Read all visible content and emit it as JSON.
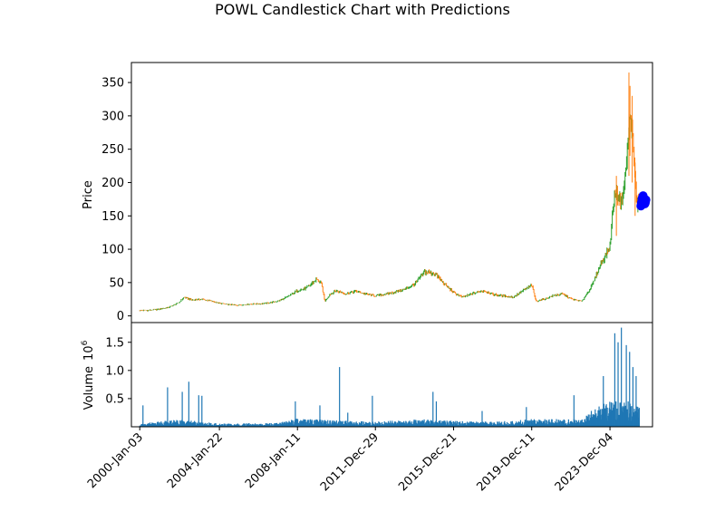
{
  "chart_data": {
    "type": "candlestick",
    "title": "POWL Candlestick Chart with Predictions",
    "price_panel": {
      "ylabel": "Price",
      "ylim": [
        -10,
        380
      ],
      "yticks": [
        0,
        50,
        100,
        150,
        200,
        250,
        300,
        350
      ],
      "ytick_labels": [
        "0",
        "50",
        "100",
        "150",
        "200",
        "250",
        "300",
        "350"
      ],
      "colors": {
        "up": "#2ca02c",
        "down": "#ff7f0e"
      },
      "series": [
        {
          "name": "close",
          "points": [
            [
              "2000-01-03",
              8
            ],
            [
              "2000-07-01",
              8.5
            ],
            [
              "2001-01-01",
              10
            ],
            [
              "2001-07-01",
              13
            ],
            [
              "2002-01-01",
              20
            ],
            [
              "2002-04-01",
              28
            ],
            [
              "2002-09-01",
              24
            ],
            [
              "2003-03-01",
              25
            ],
            [
              "2003-09-01",
              22
            ],
            [
              "2004-01-22",
              19
            ],
            [
              "2004-07-01",
              17
            ],
            [
              "2005-01-01",
              16
            ],
            [
              "2005-07-01",
              17.5
            ],
            [
              "2006-01-01",
              18
            ],
            [
              "2006-07-01",
              19
            ],
            [
              "2007-01-01",
              22
            ],
            [
              "2007-07-01",
              28
            ],
            [
              "2008-01-11",
              38
            ],
            [
              "2008-07-01",
              42
            ],
            [
              "2009-01-01",
              55
            ],
            [
              "2009-04-01",
              48
            ],
            [
              "2009-06-01",
              22
            ],
            [
              "2009-09-01",
              32
            ],
            [
              "2010-01-01",
              38
            ],
            [
              "2010-07-01",
              33
            ],
            [
              "2011-01-01",
              37
            ],
            [
              "2011-07-01",
              33
            ],
            [
              "2011-12-29",
              30
            ],
            [
              "2012-06-01",
              32
            ],
            [
              "2013-01-01",
              36
            ],
            [
              "2013-07-01",
              40
            ],
            [
              "2014-01-01",
              48
            ],
            [
              "2014-07-01",
              66
            ],
            [
              "2015-01-01",
              64
            ],
            [
              "2015-07-01",
              48
            ],
            [
              "2015-12-21",
              35
            ],
            [
              "2016-06-01",
              28
            ],
            [
              "2017-01-01",
              34
            ],
            [
              "2017-07-01",
              38
            ],
            [
              "2018-01-01",
              32
            ],
            [
              "2018-07-01",
              30
            ],
            [
              "2019-01-01",
              28
            ],
            [
              "2019-06-01",
              36
            ],
            [
              "2019-12-11",
              46
            ],
            [
              "2020-03-01",
              22
            ],
            [
              "2020-09-01",
              26
            ],
            [
              "2021-01-01",
              30
            ],
            [
              "2021-07-01",
              33
            ],
            [
              "2022-01-01",
              25
            ],
            [
              "2022-07-01",
              22
            ],
            [
              "2023-01-01",
              45
            ],
            [
              "2023-06-01",
              75
            ],
            [
              "2023-09-01",
              90
            ],
            [
              "2023-12-04",
              105
            ],
            [
              "2024-01-15",
              150
            ],
            [
              "2024-03-01",
              185
            ],
            [
              "2024-05-01",
              180
            ],
            [
              "2024-07-01",
              170
            ],
            [
              "2024-09-01",
              200
            ],
            [
              "2024-11-01",
              260
            ],
            [
              "2024-12-15",
              300
            ],
            [
              "2025-01-15",
              280
            ],
            [
              "2025-03-01",
              220
            ],
            [
              "2025-04-15",
              165
            ],
            [
              "2025-05-15",
              175
            ],
            [
              "2025-06-15",
              180
            ]
          ]
        }
      ],
      "spikes": [
        [
          "2024-11-20",
          210,
          365
        ],
        [
          "2024-12-10",
          240,
          345
        ],
        [
          "2025-01-20",
          200,
          330
        ],
        [
          "2024-04-01",
          120,
          210
        ],
        [
          "2025-03-15",
          150,
          230
        ]
      ],
      "predictions": {
        "name": "predictions",
        "color": "#0000ff",
        "x_start": "2025-07-01",
        "x_end": "2025-09-30",
        "values": [
          165,
          170,
          175,
          178,
          180,
          176,
          172,
          168,
          170,
          174
        ]
      }
    },
    "volume_panel": {
      "ylabel": "Volume",
      "scale_label": "10",
      "scale_exponent": "6",
      "ylim": [
        0,
        1.85
      ],
      "yticks": [
        0.5,
        1.0,
        1.5
      ],
      "ytick_labels": [
        "0.5",
        "1.0",
        "1.5"
      ],
      "color": "#1f77b4",
      "base_levels": [
        [
          "2000-01-03",
          0.05
        ],
        [
          "2002-01-01",
          0.12
        ],
        [
          "2004-01-01",
          0.05
        ],
        [
          "2007-01-01",
          0.06
        ],
        [
          "2008-01-01",
          0.13
        ],
        [
          "2010-01-01",
          0.1
        ],
        [
          "2012-01-01",
          0.08
        ],
        [
          "2014-06-01",
          0.12
        ],
        [
          "2016-01-01",
          0.09
        ],
        [
          "2018-01-01",
          0.08
        ],
        [
          "2020-01-01",
          0.12
        ],
        [
          "2022-06-01",
          0.12
        ],
        [
          "2023-06-01",
          0.35
        ],
        [
          "2024-06-01",
          0.45
        ],
        [
          "2025-06-01",
          0.35
        ]
      ],
      "spikes": [
        [
          "2000-03-01",
          0.38
        ],
        [
          "2001-06-01",
          0.7
        ],
        [
          "2002-03-01",
          0.62
        ],
        [
          "2002-07-01",
          0.8
        ],
        [
          "2003-01-01",
          0.56
        ],
        [
          "2003-03-01",
          0.55
        ],
        [
          "2007-12-01",
          0.45
        ],
        [
          "2009-03-01",
          0.38
        ],
        [
          "2010-03-01",
          1.06
        ],
        [
          "2010-08-01",
          0.25
        ],
        [
          "2011-11-01",
          0.55
        ],
        [
          "2014-12-01",
          0.62
        ],
        [
          "2015-02-01",
          0.45
        ],
        [
          "2017-06-01",
          0.28
        ],
        [
          "2019-09-01",
          0.35
        ],
        [
          "2022-02-01",
          0.56
        ],
        [
          "2023-08-01",
          0.9
        ],
        [
          "2024-03-01",
          1.66
        ],
        [
          "2024-05-01",
          1.5
        ],
        [
          "2024-07-01",
          1.76
        ],
        [
          "2024-10-01",
          1.45
        ],
        [
          "2024-12-01",
          1.33
        ],
        [
          "2025-02-01",
          1.06
        ],
        [
          "2025-04-01",
          0.9
        ]
      ]
    },
    "xaxis": {
      "range": [
        "1999-08-01",
        "2026-02-01"
      ],
      "ticks": [
        "2000-01-03",
        "2004-01-22",
        "2008-01-11",
        "2011-12-29",
        "2015-12-21",
        "2019-12-11",
        "2023-12-04"
      ],
      "tick_labels": [
        "2000-Jan-03",
        "2004-Jan-22",
        "2008-Jan-11",
        "2011-Dec-29",
        "2015-Dec-21",
        "2019-Dec-11",
        "2023-Dec-04"
      ]
    },
    "grid": false,
    "legend": false
  }
}
